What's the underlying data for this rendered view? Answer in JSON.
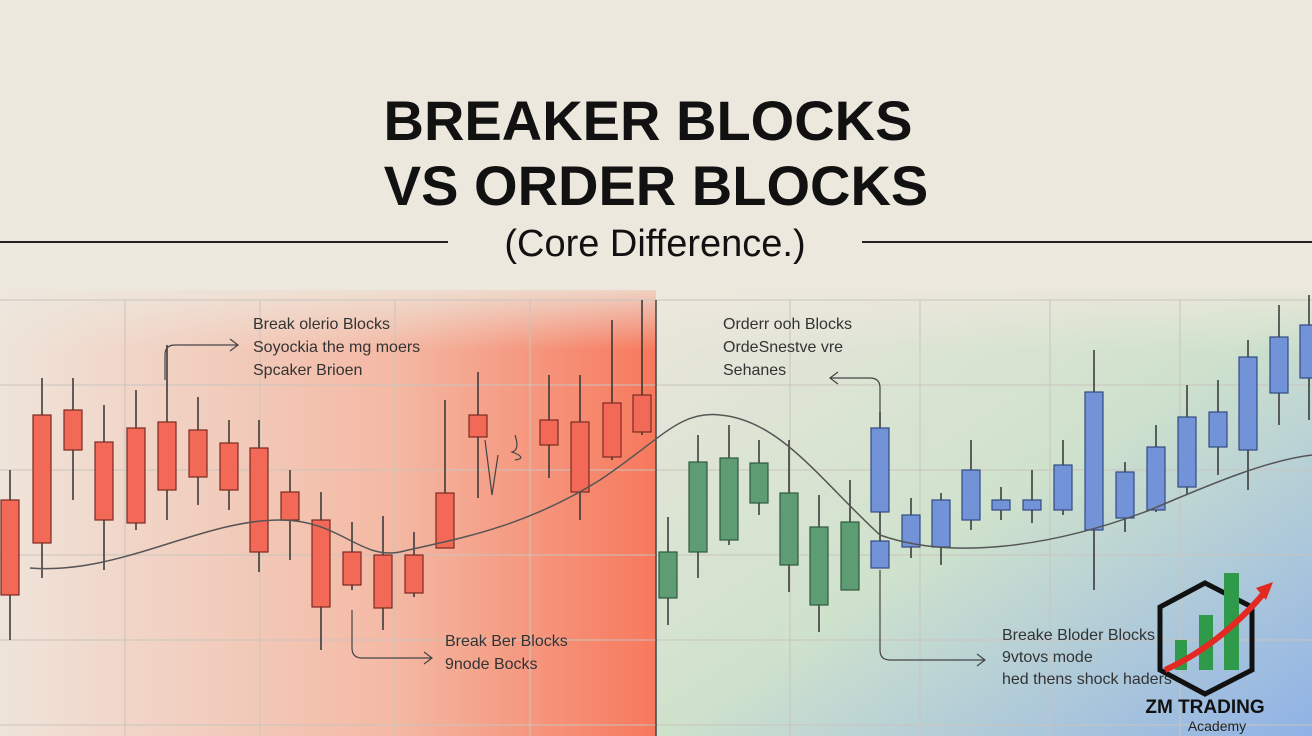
{
  "header": {
    "title_lines": [
      "BREAKER BLOCKS",
      "VS ORDER BLOCKS"
    ],
    "subtitle": "(Core Difference.)"
  },
  "annotations": [
    {
      "lines": [
        "Break olerio Blocks",
        "Soyockia the mg moers",
        "Spcaker Brioen"
      ]
    },
    {
      "lines": [
        "Break Ber Blocks",
        "9node Bocks"
      ]
    },
    {
      "lines": [
        "Orderr ooh Blocks",
        "OrdeSnestve vre",
        "Sehanes"
      ]
    },
    {
      "lines": [
        "Breake Bloder Blocks",
        "9vtovs mode",
        "hed thens shock haders"
      ]
    }
  ],
  "logo": {
    "name": "ZM TRADING",
    "tagline": "Academy"
  }
}
